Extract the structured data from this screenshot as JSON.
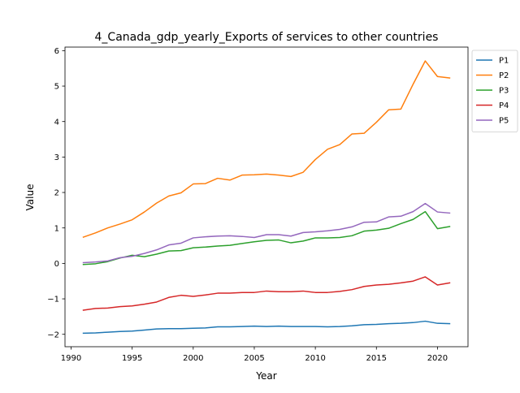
{
  "chart_data": {
    "type": "line",
    "title": "4_Canada_gdp_yearly_Exports of services to other countries",
    "xlabel": "Year",
    "ylabel": "Value",
    "xlim": [
      1989.5,
      2022.5
    ],
    "ylim": [
      -2.35,
      6.1
    ],
    "xticks": [
      1990,
      1995,
      2000,
      2005,
      2010,
      2015,
      2020
    ],
    "yticks": [
      -2,
      -1,
      0,
      1,
      2,
      3,
      4,
      5,
      6
    ],
    "grid": false,
    "legend_position": "outside-top-right",
    "x": [
      1991,
      1992,
      1993,
      1994,
      1995,
      1996,
      1997,
      1998,
      1999,
      2000,
      2001,
      2002,
      2003,
      2004,
      2005,
      2006,
      2007,
      2008,
      2009,
      2010,
      2011,
      2012,
      2013,
      2014,
      2015,
      2016,
      2017,
      2018,
      2019,
      2020,
      2021
    ],
    "series": [
      {
        "name": "P1",
        "color": "#1f77b4",
        "values": [
          -1.97,
          -1.96,
          -1.94,
          -1.92,
          -1.91,
          -1.88,
          -1.85,
          -1.84,
          -1.84,
          -1.83,
          -1.82,
          -1.79,
          -1.79,
          -1.78,
          -1.77,
          -1.78,
          -1.77,
          -1.78,
          -1.78,
          -1.78,
          -1.79,
          -1.78,
          -1.76,
          -1.73,
          -1.72,
          -1.7,
          -1.69,
          -1.67,
          -1.63,
          -1.69,
          -1.7
        ]
      },
      {
        "name": "P2",
        "color": "#ff7f0e",
        "values": [
          0.74,
          0.86,
          1.0,
          1.11,
          1.23,
          1.45,
          1.7,
          1.9,
          1.99,
          2.24,
          2.25,
          2.4,
          2.35,
          2.49,
          2.5,
          2.52,
          2.49,
          2.45,
          2.57,
          2.93,
          3.22,
          3.35,
          3.65,
          3.67,
          3.98,
          4.33,
          4.35,
          5.05,
          5.71,
          5.27,
          5.23
        ]
      },
      {
        "name": "P3",
        "color": "#2ca02c",
        "values": [
          -0.03,
          -0.01,
          0.05,
          0.15,
          0.23,
          0.19,
          0.26,
          0.35,
          0.36,
          0.44,
          0.46,
          0.49,
          0.51,
          0.56,
          0.61,
          0.65,
          0.66,
          0.58,
          0.63,
          0.72,
          0.72,
          0.73,
          0.78,
          0.91,
          0.94,
          0.99,
          1.12,
          1.24,
          1.46,
          0.98,
          1.04
        ]
      },
      {
        "name": "P4",
        "color": "#d62728",
        "values": [
          -1.32,
          -1.27,
          -1.26,
          -1.22,
          -1.2,
          -1.15,
          -1.09,
          -0.96,
          -0.9,
          -0.93,
          -0.89,
          -0.84,
          -0.84,
          -0.82,
          -0.82,
          -0.78,
          -0.8,
          -0.8,
          -0.78,
          -0.82,
          -0.82,
          -0.79,
          -0.74,
          -0.65,
          -0.61,
          -0.59,
          -0.55,
          -0.5,
          -0.38,
          -0.61,
          -0.55
        ]
      },
      {
        "name": "P5",
        "color": "#9467bd",
        "values": [
          0.02,
          0.04,
          0.07,
          0.16,
          0.2,
          0.28,
          0.38,
          0.52,
          0.57,
          0.72,
          0.75,
          0.77,
          0.78,
          0.76,
          0.73,
          0.81,
          0.81,
          0.77,
          0.87,
          0.89,
          0.92,
          0.96,
          1.03,
          1.16,
          1.17,
          1.31,
          1.33,
          1.46,
          1.69,
          1.45,
          1.42
        ]
      }
    ]
  }
}
